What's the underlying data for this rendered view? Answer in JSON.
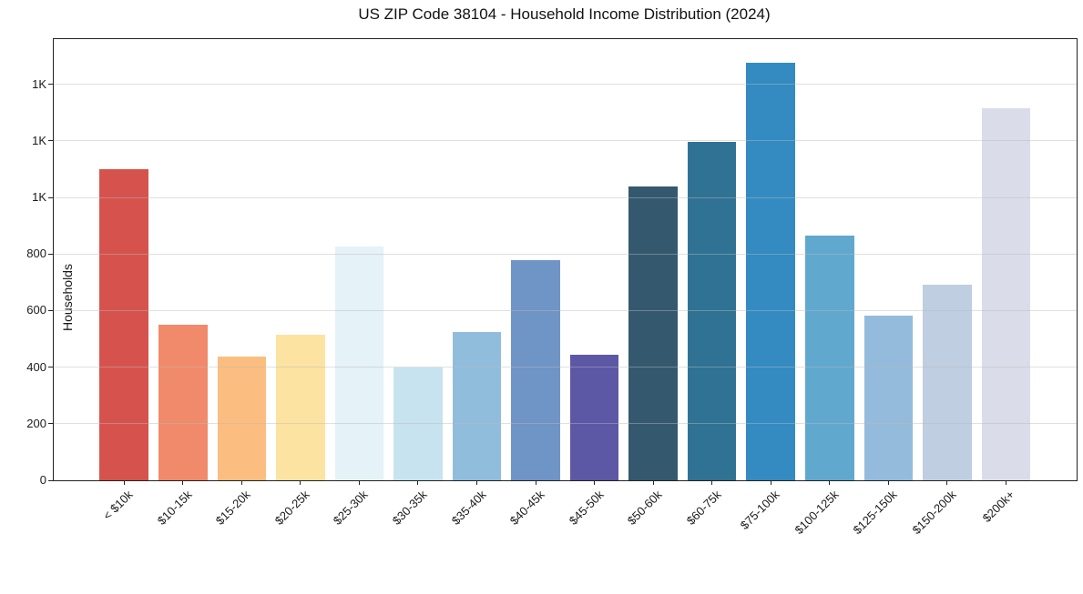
{
  "chart_data": {
    "type": "bar",
    "title": "US ZIP Code 38104 - Household Income Distribution (2024)",
    "xlabel": "",
    "ylabel": "Households",
    "categories": [
      "< $10k",
      "$10-15k",
      "$15-20k",
      "$20-25k",
      "$25-30k",
      "$30-35k",
      "$35-40k",
      "$40-45k",
      "$45-50k",
      "$50-60k",
      "$60-75k",
      "$75-100k",
      "$100-125k",
      "$125-150k",
      "$150-200k",
      "$200k+"
    ],
    "values": [
      1100,
      551,
      439,
      515,
      827,
      398,
      524,
      777,
      443,
      1038,
      1197,
      1477,
      866,
      583,
      692,
      1317
    ],
    "bar_colors": [
      "#d6534d",
      "#f18a6b",
      "#fcbd80",
      "#fde3a2",
      "#e5f2f7",
      "#c6e3ef",
      "#91bddd",
      "#6f94c6",
      "#5c58a6",
      "#34596f",
      "#307294",
      "#338bc1",
      "#61a8ce",
      "#94bbdb",
      "#bfcee0",
      "#dadce9"
    ],
    "ylim": [
      0,
      1560
    ],
    "yticks": {
      "values": [
        0,
        200,
        400,
        600,
        800,
        1000,
        1200,
        1400
      ],
      "labels": [
        "0",
        "200",
        "400",
        "600",
        "800",
        "1K",
        "1K",
        "1K"
      ]
    },
    "grid": "horizontal",
    "legend": "none",
    "background": "#ffffff"
  }
}
